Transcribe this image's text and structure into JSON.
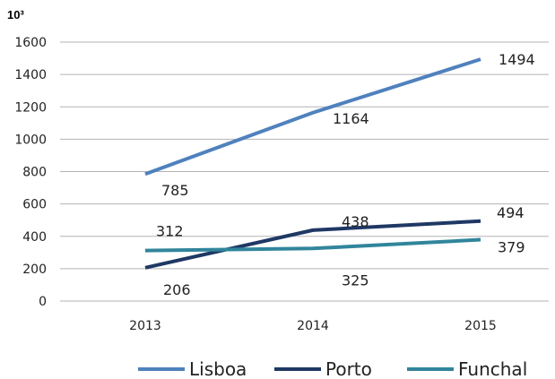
{
  "chart_data": {
    "type": "line",
    "unit_label": "10³",
    "categories": [
      "2013",
      "2014",
      "2015"
    ],
    "y_ticks": [
      0,
      200,
      400,
      600,
      800,
      1000,
      1200,
      1400,
      1600
    ],
    "ylim": [
      0,
      1600
    ],
    "grid": true,
    "legend_position": "bottom",
    "series": [
      {
        "name": "Lisboa",
        "values": [
          785,
          1164,
          1494
        ],
        "color": "#4f81bd"
      },
      {
        "name": "Porto",
        "values": [
          206,
          438,
          494
        ],
        "color": "#1f3864"
      },
      {
        "name": "Funchal",
        "values": [
          312,
          325,
          379
        ],
        "color": "#31859c"
      }
    ]
  }
}
